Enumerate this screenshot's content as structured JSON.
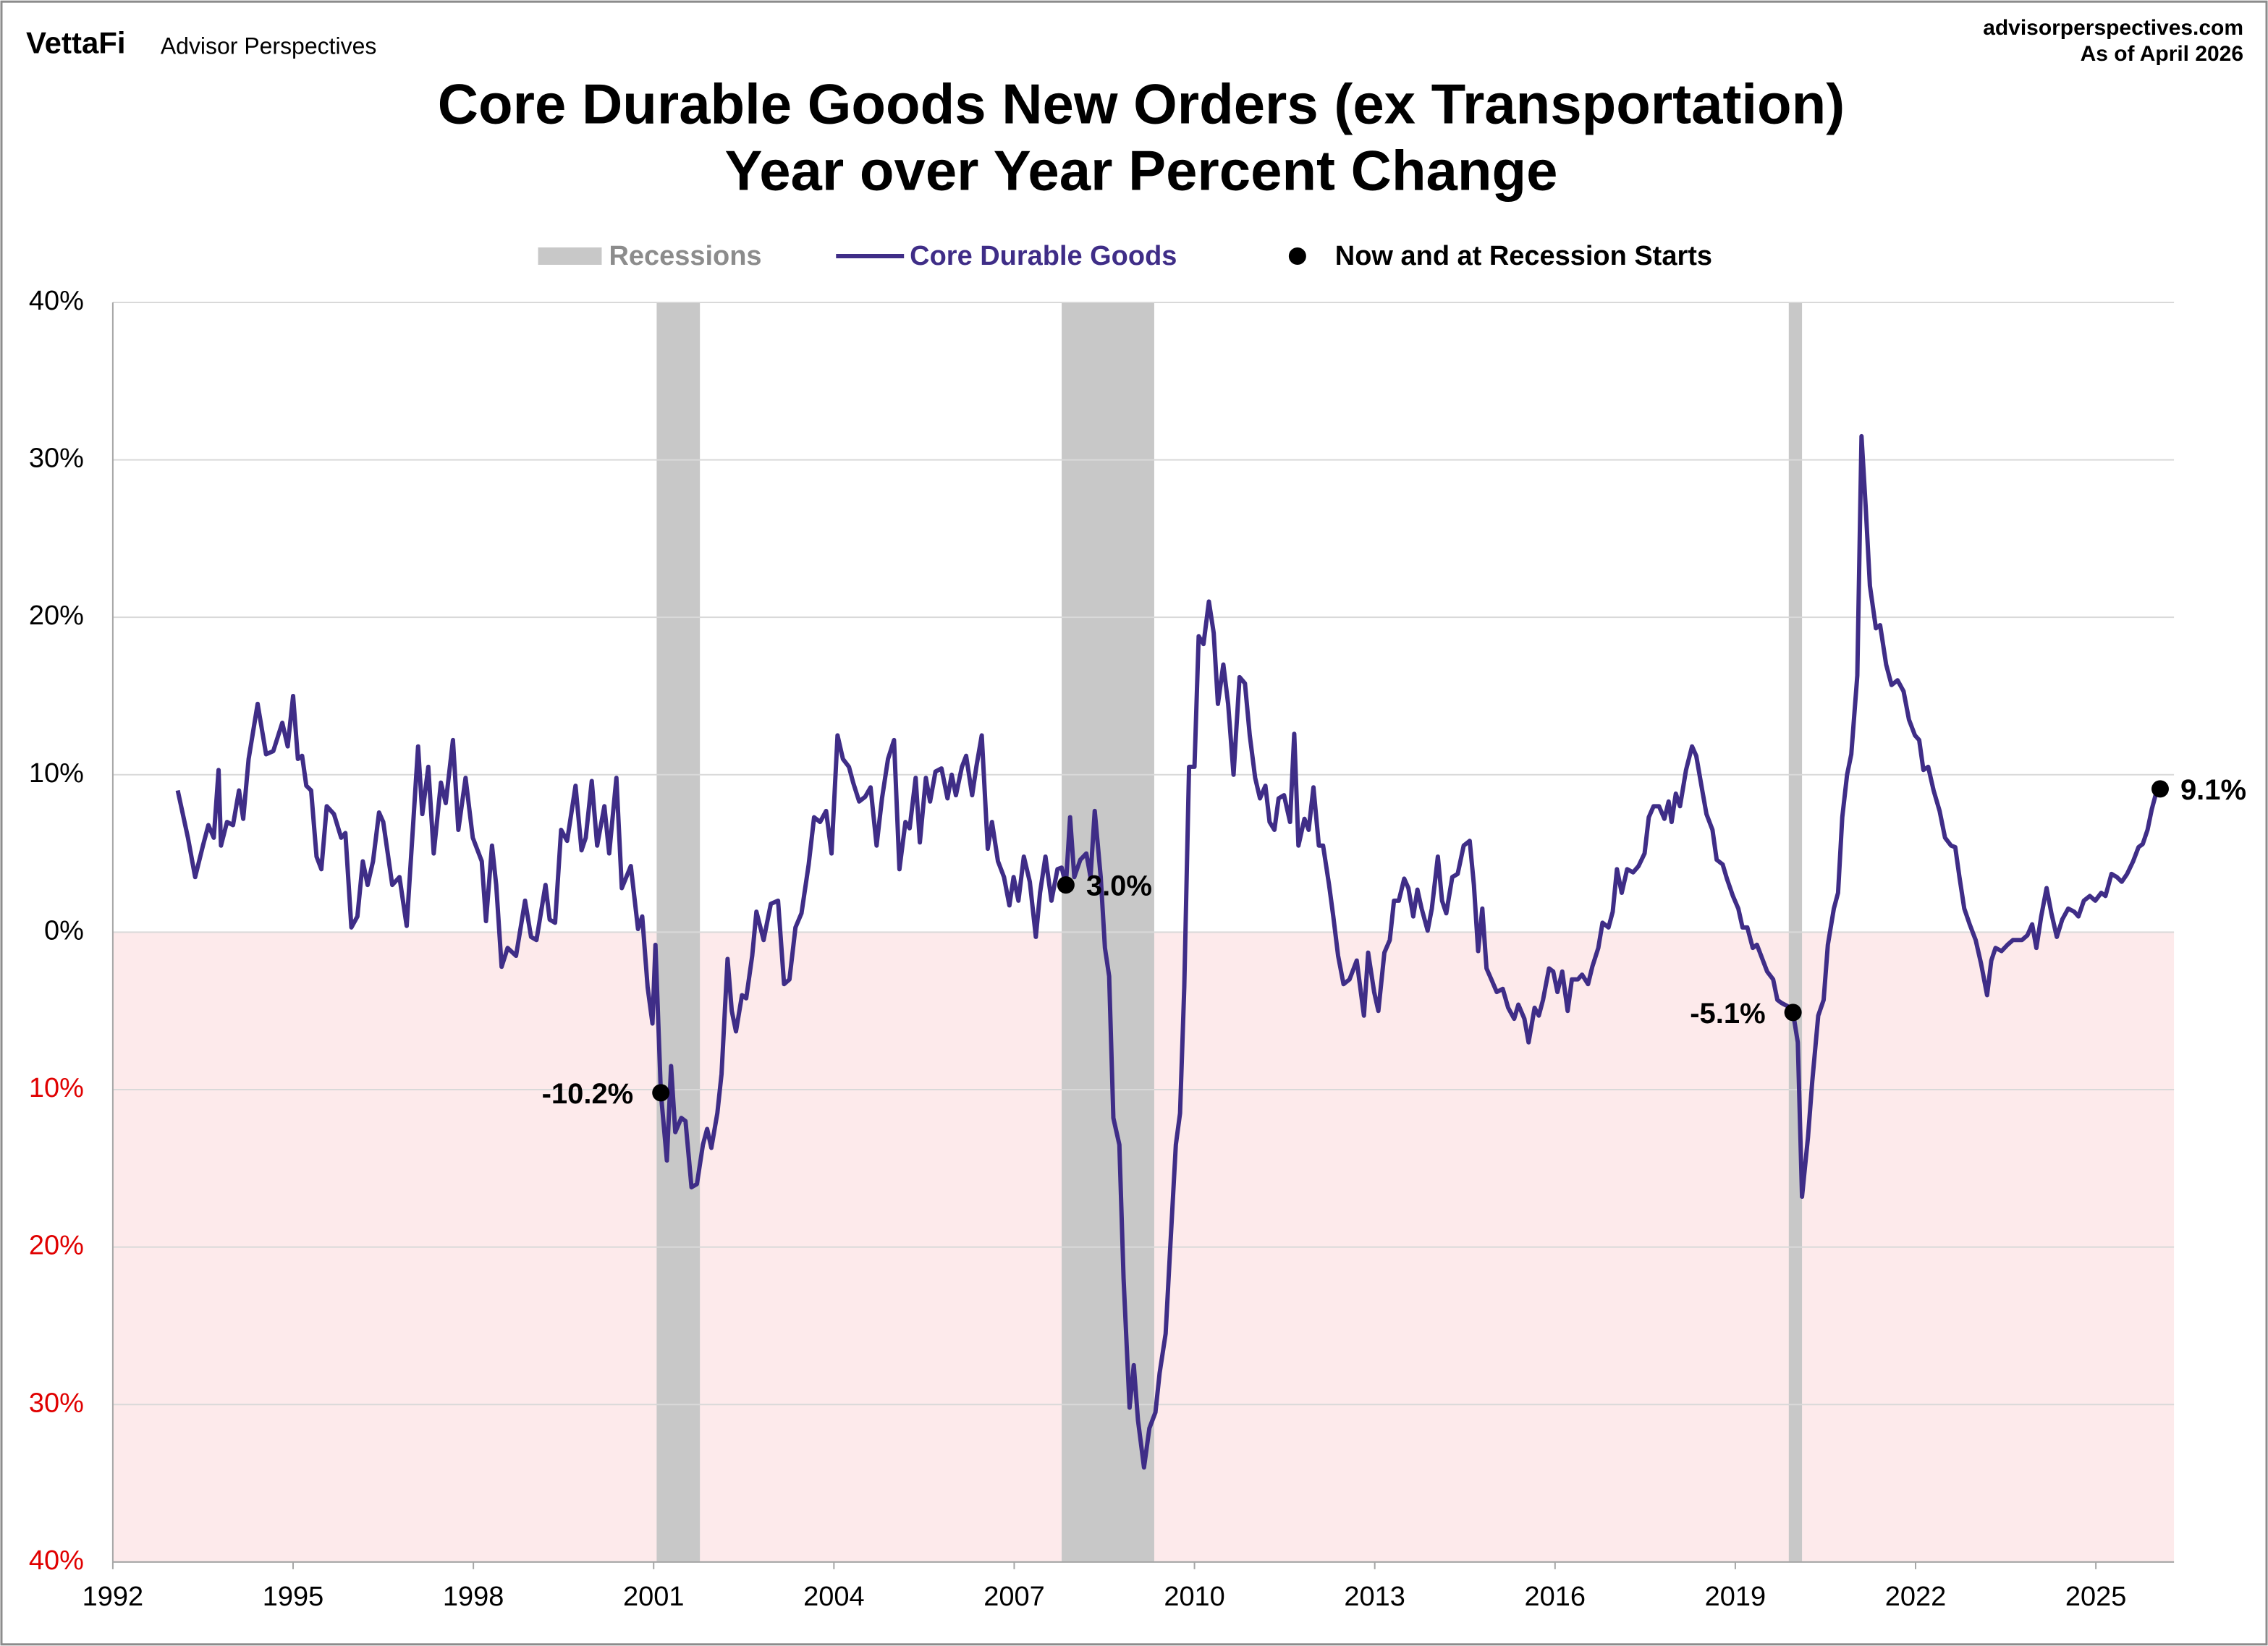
{
  "header": {
    "brand": "VettaFi",
    "publisher": "Advisor Perspectives",
    "website": "advisorperspectives.com",
    "as_of": "As of April 2026"
  },
  "chart_data": {
    "type": "line",
    "title": "Core Durable Goods New Orders (ex Transportation)",
    "subtitle": "Year over Year Percent Change",
    "xlim": [
      1992,
      2026.3
    ],
    "xticks": [
      1992,
      1995,
      1998,
      2001,
      2004,
      2007,
      2010,
      2013,
      2016,
      2019,
      2022,
      2025
    ],
    "ylim": [
      -40,
      40
    ],
    "yticks": [
      {
        "value": 40,
        "label": "40%"
      },
      {
        "value": 30,
        "label": "30%"
      },
      {
        "value": 20,
        "label": "20%"
      },
      {
        "value": 10,
        "label": "10%"
      },
      {
        "value": 0,
        "label": "0%"
      },
      {
        "value": -10,
        "label": "10%"
      },
      {
        "value": -20,
        "label": "20%"
      },
      {
        "value": -30,
        "label": "30%"
      },
      {
        "value": -40,
        "label": "40%"
      }
    ],
    "grid": true,
    "recessions": {
      "name": "Recessions",
      "color": "#c8c8c8",
      "spans": [
        [
          2001.05,
          2001.77
        ],
        [
          2007.79,
          2009.33
        ],
        [
          2019.89,
          2020.11
        ]
      ]
    },
    "series": [
      {
        "name": "Core Durable Goods",
        "color": "#3f2d87",
        "x": [
          1993.08,
          1993.25,
          1993.37,
          1993.5,
          1993.59,
          1993.68,
          1993.76,
          1993.8,
          1993.9,
          1994.0,
          1994.1,
          1994.17,
          1994.26,
          1994.41,
          1994.55,
          1994.67,
          1994.82,
          1994.91,
          1995.0,
          1995.08,
          1995.15,
          1995.22,
          1995.3,
          1995.39,
          1995.47,
          1995.56,
          1995.68,
          1995.8,
          1995.87,
          1995.97,
          1996.07,
          1996.16,
          1996.24,
          1996.33,
          1996.43,
          1996.5,
          1996.65,
          1996.77,
          1996.89,
          1997.08,
          1997.15,
          1997.25,
          1997.34,
          1997.46,
          1997.54,
          1997.66,
          1997.75,
          1997.87,
          1997.99,
          1998.14,
          1998.21,
          1998.31,
          1998.38,
          1998.47,
          1998.57,
          1998.71,
          1998.86,
          1998.96,
          1999.05,
          1999.2,
          1999.27,
          1999.36,
          1999.46,
          1999.56,
          1999.7,
          1999.8,
          1999.87,
          1999.97,
          2000.06,
          2000.18,
          2000.26,
          2000.38,
          2000.47,
          2000.62,
          2000.74,
          2000.81,
          2000.9,
          2000.98,
          2001.03,
          2001.12,
          2001.22,
          2001.29,
          2001.36,
          2001.46,
          2001.53,
          2001.63,
          2001.72,
          2001.82,
          2001.89,
          2001.96,
          2002.06,
          2002.13,
          2002.23,
          2002.3,
          2002.37,
          2002.47,
          2002.54,
          2002.64,
          2002.71,
          2002.83,
          2002.95,
          2003.07,
          2003.17,
          2003.26,
          2003.36,
          2003.46,
          2003.58,
          2003.67,
          2003.77,
          2003.87,
          2003.96,
          2004.06,
          2004.15,
          2004.25,
          2004.32,
          2004.42,
          2004.52,
          2004.61,
          2004.71,
          2004.8,
          2004.9,
          2005.0,
          2005.09,
          2005.19,
          2005.26,
          2005.36,
          2005.43,
          2005.53,
          2005.6,
          2005.69,
          2005.79,
          2005.89,
          2005.96,
          2006.03,
          2006.13,
          2006.2,
          2006.3,
          2006.37,
          2006.46,
          2006.56,
          2006.63,
          2006.73,
          2006.83,
          2006.92,
          2006.99,
          2007.07,
          2007.16,
          2007.26,
          2007.36,
          2007.43,
          2007.52,
          2007.62,
          2007.72,
          2007.79,
          2007.86,
          2007.93,
          2008.0,
          2008.1,
          2008.2,
          2008.27,
          2008.34,
          2008.44,
          2008.51,
          2008.58,
          2008.65,
          2008.75,
          2008.82,
          2008.92,
          2008.99,
          2009.06,
          2009.16,
          2009.25,
          2009.35,
          2009.42,
          2009.52,
          2009.59,
          2009.69,
          2009.76,
          2009.83,
          2009.91,
          2010.0,
          2010.07,
          2010.15,
          2010.24,
          2010.32,
          2010.39,
          2010.48,
          2010.56,
          2010.65,
          2010.75,
          2010.84,
          2010.92,
          2011.01,
          2011.09,
          2011.18,
          2011.25,
          2011.33,
          2011.4,
          2011.49,
          2011.59,
          2011.66,
          2011.73,
          2011.83,
          2011.9,
          2011.98,
          2012.07,
          2012.14,
          2012.24,
          2012.31,
          2012.39,
          2012.48,
          2012.58,
          2012.7,
          2012.82,
          2012.89,
          2012.99,
          2013.06,
          2013.16,
          2013.25,
          2013.32,
          2013.4,
          2013.49,
          2013.56,
          2013.64,
          2013.71,
          2013.78,
          2013.88,
          2013.95,
          2014.05,
          2014.12,
          2014.19,
          2014.29,
          2014.38,
          2014.48,
          2014.58,
          2014.65,
          2014.72,
          2014.79,
          2014.86,
          2014.94,
          2015.03,
          2015.13,
          2015.22,
          2015.32,
          2015.39,
          2015.49,
          2015.56,
          2015.66,
          2015.73,
          2015.8,
          2015.9,
          2015.97,
          2016.04,
          2016.12,
          2016.21,
          2016.28,
          2016.38,
          2016.45,
          2016.55,
          2016.62,
          2016.72,
          2016.79,
          2016.89,
          2016.96,
          2017.03,
          2017.11,
          2017.2,
          2017.3,
          2017.39,
          2017.49,
          2017.56,
          2017.64,
          2017.73,
          2017.82,
          2017.89,
          2017.94,
          2018.01,
          2018.08,
          2018.18,
          2018.28,
          2018.35,
          2018.45,
          2018.52,
          2018.62,
          2018.69,
          2018.79,
          2018.86,
          2018.96,
          2019.05,
          2019.12,
          2019.2,
          2019.29,
          2019.36,
          2019.46,
          2019.53,
          2019.63,
          2019.7,
          2019.77,
          2019.87,
          2019.96,
          2020.04,
          2020.11,
          2020.21,
          2020.28,
          2020.38,
          2020.47,
          2020.54,
          2020.64,
          2020.71,
          2020.78,
          2020.86,
          2020.93,
          2021.03,
          2021.1,
          2021.17,
          2021.24,
          2021.34,
          2021.41,
          2021.51,
          2021.6,
          2021.7,
          2021.8,
          2021.89,
          2021.99,
          2022.06,
          2022.13,
          2022.21,
          2022.3,
          2022.4,
          2022.49,
          2022.59,
          2022.66,
          2022.73,
          2022.81,
          2022.9,
          2023.0,
          2023.09,
          2023.19,
          2023.26,
          2023.33,
          2023.43,
          2023.53,
          2023.62,
          2023.7,
          2023.77,
          2023.86,
          2023.94,
          2024.01,
          2024.09,
          2024.18,
          2024.26,
          2024.35,
          2024.44,
          2024.54,
          2024.64,
          2024.71,
          2024.8,
          2024.9,
          2024.99,
          2025.09,
          2025.16,
          2025.26,
          2025.35,
          2025.43,
          2025.52,
          2025.62,
          2025.71,
          2025.78,
          2025.86,
          2025.93,
          2026.0,
          2026.07
        ],
        "values": [
          9,
          6,
          3.5,
          5.5,
          6.8,
          6,
          10.3,
          5.5,
          7,
          6.8,
          9,
          7.2,
          11,
          14.5,
          11.3,
          11.5,
          13.3,
          11.8,
          15,
          11,
          11.2,
          9.3,
          9,
          4.8,
          4,
          8,
          7.5,
          6,
          6.3,
          0.3,
          1,
          4.5,
          3,
          4.5,
          7.6,
          7,
          3,
          3.5,
          0.4,
          11.8,
          7.5,
          10.5,
          5,
          9.5,
          8.2,
          12.2,
          6.5,
          9.8,
          6,
          4.5,
          0.7,
          5.5,
          3,
          -2.2,
          -1,
          -1.5,
          2,
          -0.3,
          -0.5,
          3,
          0.8,
          0.6,
          6.5,
          5.8,
          9.3,
          5.2,
          6,
          9.6,
          5.5,
          8,
          5,
          9.8,
          2.8,
          4.2,
          0.2,
          1,
          -3.5,
          -5.8,
          -0.8,
          -10.2,
          -14.5,
          -8.5,
          -12.7,
          -11.8,
          -12,
          -16.2,
          -16,
          -13.5,
          -12.5,
          -13.7,
          -11.5,
          -9,
          -1.7,
          -5,
          -6.3,
          -4,
          -4.2,
          -1.5,
          1.3,
          -0.5,
          1.8,
          2,
          -3.3,
          -3,
          0.3,
          1.2,
          4.3,
          7.3,
          7,
          7.7,
          5,
          12.5,
          11,
          10.5,
          9.5,
          8.3,
          8.6,
          9.2,
          5.5,
          8.5,
          11,
          12.2,
          4,
          7,
          6.6,
          9.8,
          5.7,
          9.8,
          8.3,
          10.2,
          10.4,
          8.5,
          10,
          8.7,
          10.5,
          11.2,
          8.7,
          10.5,
          12.5,
          5.3,
          7,
          4.5,
          3.5,
          1.7,
          3.5,
          2,
          4.8,
          3.2,
          -0.3,
          2.5,
          4.8,
          2,
          4,
          4.1,
          3.0,
          7.3,
          3.5,
          4.6,
          5,
          3.5,
          7.7,
          3.5,
          -1,
          -2.8,
          -11.8,
          -13.5,
          -22,
          -30.2,
          -27.5,
          -31,
          -34,
          -31.5,
          -30.5,
          -28,
          -25.5,
          -20.5,
          -13.5,
          -11.5,
          -3.5,
          10.5,
          10.5,
          18.8,
          18.3,
          21,
          19,
          14.5,
          17,
          14.5,
          10,
          16.2,
          15.8,
          12.5,
          9.8,
          8.5,
          9.3,
          7,
          6.5,
          8.5,
          8.7,
          7,
          12.6,
          5.5,
          7.2,
          6.5,
          9.2,
          5.5,
          5.5,
          3,
          1,
          -1.5,
          -3.3,
          -3,
          -1.8,
          -5.3,
          -1.3,
          -3.8,
          -5,
          -1.3,
          -0.5,
          2,
          2,
          3.4,
          2.8,
          1,
          2.7,
          1.5,
          0.1,
          1.5,
          4.8,
          2,
          1.2,
          3.5,
          3.7,
          5.5,
          5.8,
          3,
          -1.2,
          1.5,
          -2.3,
          -3,
          -3.8,
          -3.6,
          -4.8,
          -5.5,
          -4.6,
          -5.5,
          -7,
          -4.8,
          -5.3,
          -4.3,
          -2.3,
          -2.5,
          -3.8,
          -2.5,
          -5,
          -3,
          -3,
          -2.7,
          -3.3,
          -2.2,
          -1,
          0.6,
          0.3,
          1.3,
          4,
          2.5,
          4,
          3.8,
          4.2,
          5,
          7.3,
          8,
          8,
          7.2,
          8.3,
          7,
          8.8,
          8,
          10.3,
          11.8,
          11.2,
          9,
          7.5,
          6.5,
          4.6,
          4.3,
          3.4,
          2.3,
          1.5,
          0.3,
          0.3,
          -1,
          -0.8,
          -1.8,
          -2.5,
          -3,
          -4.3,
          -4.5,
          -4.7,
          -5.1,
          -7,
          -16.8,
          -13,
          -9.5,
          -5.3,
          -4.3,
          -0.8,
          1.5,
          2.5,
          7.3,
          10,
          11.3,
          16.3,
          31.5,
          27,
          22,
          19.3,
          19.5,
          17,
          15.7,
          16,
          15.3,
          13.5,
          12.5,
          12.2,
          10.3,
          10.5,
          9,
          7.7,
          6,
          5.5,
          5.4,
          3.5,
          1.5,
          0.5,
          -0.5,
          -2,
          -4,
          -1.8,
          -1,
          -1.2,
          -0.8,
          -0.5,
          -0.5,
          -0.5,
          -0.2,
          0.5,
          -1,
          1,
          2.8,
          1.2,
          -0.3,
          0.8,
          1.5,
          1.3,
          1.0,
          2,
          2.3,
          2,
          2.5,
          2.3,
          3.7,
          3.5,
          3.2,
          3.7,
          4.5,
          5.4,
          5.6,
          6.5,
          7.8,
          8.8,
          9.1
        ]
      },
      {
        "name": "Now and at Recession Starts",
        "type": "scatter",
        "color": "#000000",
        "x": [
          2001.12,
          2007.86,
          2019.96,
          2026.07
        ],
        "values": [
          -10.2,
          3.0,
          -5.1,
          9.1
        ],
        "value_labels": [
          "-10.2%",
          "3.0%",
          "-5.1%",
          "9.1%"
        ]
      }
    ]
  }
}
